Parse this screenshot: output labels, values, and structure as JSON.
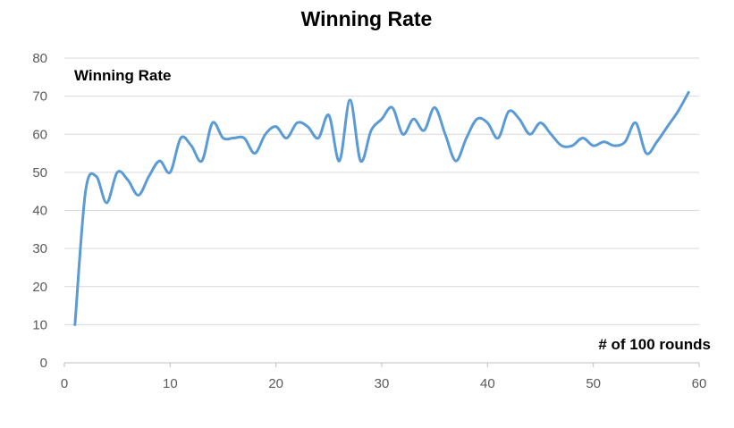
{
  "chart_data": {
    "type": "line",
    "title": "Winning Rate",
    "xlabel": "# of 100 rounds",
    "ylabel": "",
    "xlim": [
      0,
      60
    ],
    "ylim": [
      0,
      80
    ],
    "x_ticks": [
      0,
      10,
      20,
      30,
      40,
      50,
      60
    ],
    "y_ticks": [
      0,
      10,
      20,
      30,
      40,
      50,
      60,
      70,
      80
    ],
    "grid": true,
    "smooth": true,
    "series": [
      {
        "name": "Winning Rate",
        "color": "#5b9bd5",
        "x": [
          1,
          2,
          3,
          4,
          5,
          6,
          7,
          8,
          9,
          10,
          11,
          12,
          13,
          14,
          15,
          16,
          17,
          18,
          19,
          20,
          21,
          22,
          23,
          24,
          25,
          26,
          27,
          28,
          29,
          30,
          31,
          32,
          33,
          34,
          35,
          36,
          37,
          38,
          39,
          40,
          41,
          42,
          43,
          44,
          45,
          46,
          47,
          48,
          49,
          50,
          51,
          52,
          53,
          54,
          55,
          56,
          57,
          58,
          59
        ],
        "values": [
          10,
          45,
          49,
          42,
          50,
          48,
          44,
          49,
          53,
          50,
          59,
          57,
          53,
          63,
          59,
          59,
          59,
          55,
          60,
          62,
          59,
          63,
          62,
          59,
          65,
          53,
          69,
          53,
          61,
          64,
          67,
          60,
          64,
          61,
          67,
          60,
          53,
          59,
          64,
          63,
          59,
          66,
          64,
          60,
          63,
          60,
          57,
          57,
          59,
          57,
          58,
          57,
          58,
          63,
          55,
          58,
          62,
          66,
          71
        ]
      }
    ]
  }
}
